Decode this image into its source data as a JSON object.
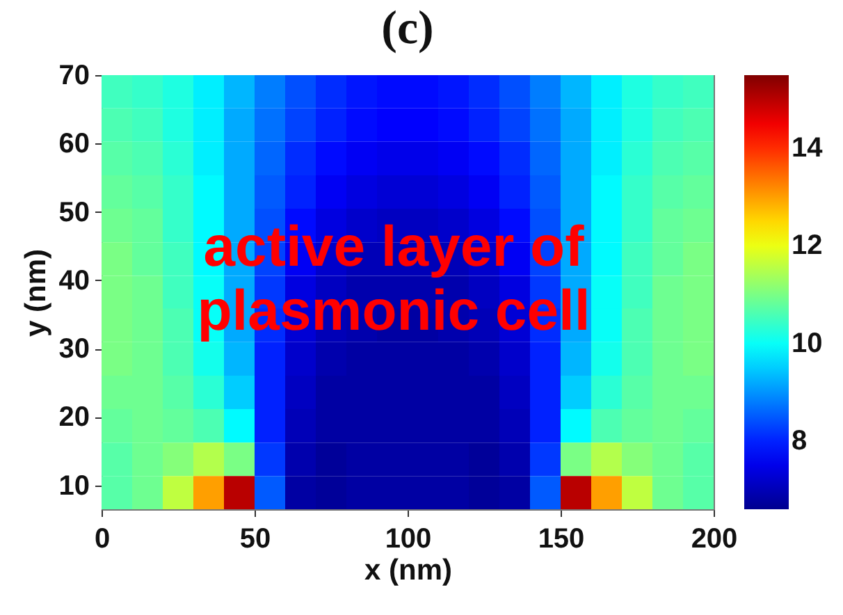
{
  "chart_data": {
    "type": "heatmap",
    "title": "(c)",
    "xlabel": "x (nm)",
    "ylabel": "y (nm)",
    "x": [
      5,
      15,
      25,
      35,
      45,
      55,
      65,
      75,
      85,
      95,
      105,
      115,
      125,
      135,
      145,
      155,
      165,
      175,
      185,
      195
    ],
    "y": [
      67.6,
      62.7,
      57.8,
      52.9,
      48.0,
      43.1,
      38.2,
      33.4,
      28.5,
      23.6,
      18.7,
      13.8,
      8.9
    ],
    "xlim": [
      0,
      200
    ],
    "ylim": [
      6.5,
      70
    ],
    "xticks": [
      0,
      50,
      100,
      150,
      200
    ],
    "yticks": [
      10,
      20,
      30,
      40,
      50,
      60,
      70
    ],
    "clim": [
      6.6,
      15.5
    ],
    "cticks": [
      8,
      10,
      12,
      14
    ],
    "cells": [
      [
        10.5,
        10.4,
        10.2,
        9.8,
        9.3,
        8.8,
        8.4,
        8.1,
        7.9,
        7.8,
        7.8,
        7.9,
        8.1,
        8.4,
        8.8,
        9.3,
        9.8,
        10.2,
        10.4,
        10.5
      ],
      [
        10.6,
        10.5,
        10.2,
        9.8,
        9.2,
        8.7,
        8.3,
        8.0,
        7.8,
        7.7,
        7.7,
        7.8,
        8.0,
        8.3,
        8.7,
        9.2,
        9.8,
        10.2,
        10.5,
        10.6
      ],
      [
        10.7,
        10.6,
        10.3,
        9.8,
        9.2,
        8.6,
        8.1,
        7.8,
        7.6,
        7.5,
        7.5,
        7.6,
        7.8,
        8.1,
        8.6,
        9.2,
        9.8,
        10.3,
        10.6,
        10.7
      ],
      [
        10.8,
        10.7,
        10.4,
        9.9,
        9.2,
        8.5,
        8.0,
        7.6,
        7.4,
        7.3,
        7.3,
        7.4,
        7.6,
        8.0,
        8.5,
        9.2,
        9.9,
        10.4,
        10.7,
        10.8
      ],
      [
        10.9,
        10.8,
        10.4,
        9.9,
        9.2,
        8.4,
        7.8,
        7.4,
        7.2,
        7.1,
        7.1,
        7.2,
        7.4,
        7.8,
        8.4,
        9.2,
        9.9,
        10.4,
        10.8,
        10.9
      ],
      [
        11.0,
        10.8,
        10.5,
        9.9,
        9.2,
        8.3,
        7.6,
        7.2,
        7.0,
        7.0,
        7.0,
        7.0,
        7.2,
        7.6,
        8.3,
        9.2,
        9.9,
        10.5,
        10.8,
        11.0
      ],
      [
        11.0,
        10.9,
        10.5,
        10.0,
        9.2,
        8.2,
        7.4,
        7.1,
        6.9,
        6.9,
        6.9,
        6.9,
        7.1,
        7.4,
        8.2,
        9.2,
        10.0,
        10.5,
        10.9,
        11.0
      ],
      [
        11.0,
        10.9,
        10.6,
        10.0,
        9.2,
        8.1,
        7.3,
        7.0,
        6.9,
        6.8,
        6.8,
        6.9,
        7.0,
        7.3,
        8.1,
        9.2,
        10.0,
        10.6,
        10.9,
        11.0
      ],
      [
        11.0,
        10.9,
        10.6,
        10.1,
        9.3,
        8.0,
        7.2,
        6.9,
        6.8,
        6.8,
        6.8,
        6.8,
        6.9,
        7.2,
        8.0,
        9.3,
        10.1,
        10.6,
        10.9,
        11.0
      ],
      [
        10.9,
        10.9,
        10.7,
        10.3,
        9.5,
        8.0,
        7.1,
        6.8,
        6.8,
        6.8,
        6.8,
        6.8,
        6.8,
        7.1,
        8.0,
        9.5,
        10.3,
        10.7,
        10.9,
        10.9
      ],
      [
        10.8,
        10.9,
        10.8,
        10.6,
        9.9,
        8.0,
        7.0,
        6.8,
        6.8,
        6.8,
        6.8,
        6.8,
        6.8,
        7.0,
        8.0,
        9.9,
        10.6,
        10.8,
        10.9,
        10.8
      ],
      [
        10.7,
        10.9,
        11.1,
        11.5,
        11.0,
        8.2,
        6.9,
        6.7,
        6.8,
        6.8,
        6.8,
        6.8,
        6.7,
        6.9,
        8.2,
        11.0,
        11.5,
        11.1,
        10.9,
        10.7
      ],
      [
        10.7,
        10.9,
        11.6,
        13.0,
        15.0,
        8.5,
        6.8,
        6.7,
        6.8,
        6.8,
        6.8,
        6.8,
        6.7,
        6.8,
        8.5,
        15.0,
        13.0,
        11.6,
        10.9,
        10.7
      ]
    ],
    "annotations": [
      "active layer of\nplasmonic cell"
    ]
  }
}
